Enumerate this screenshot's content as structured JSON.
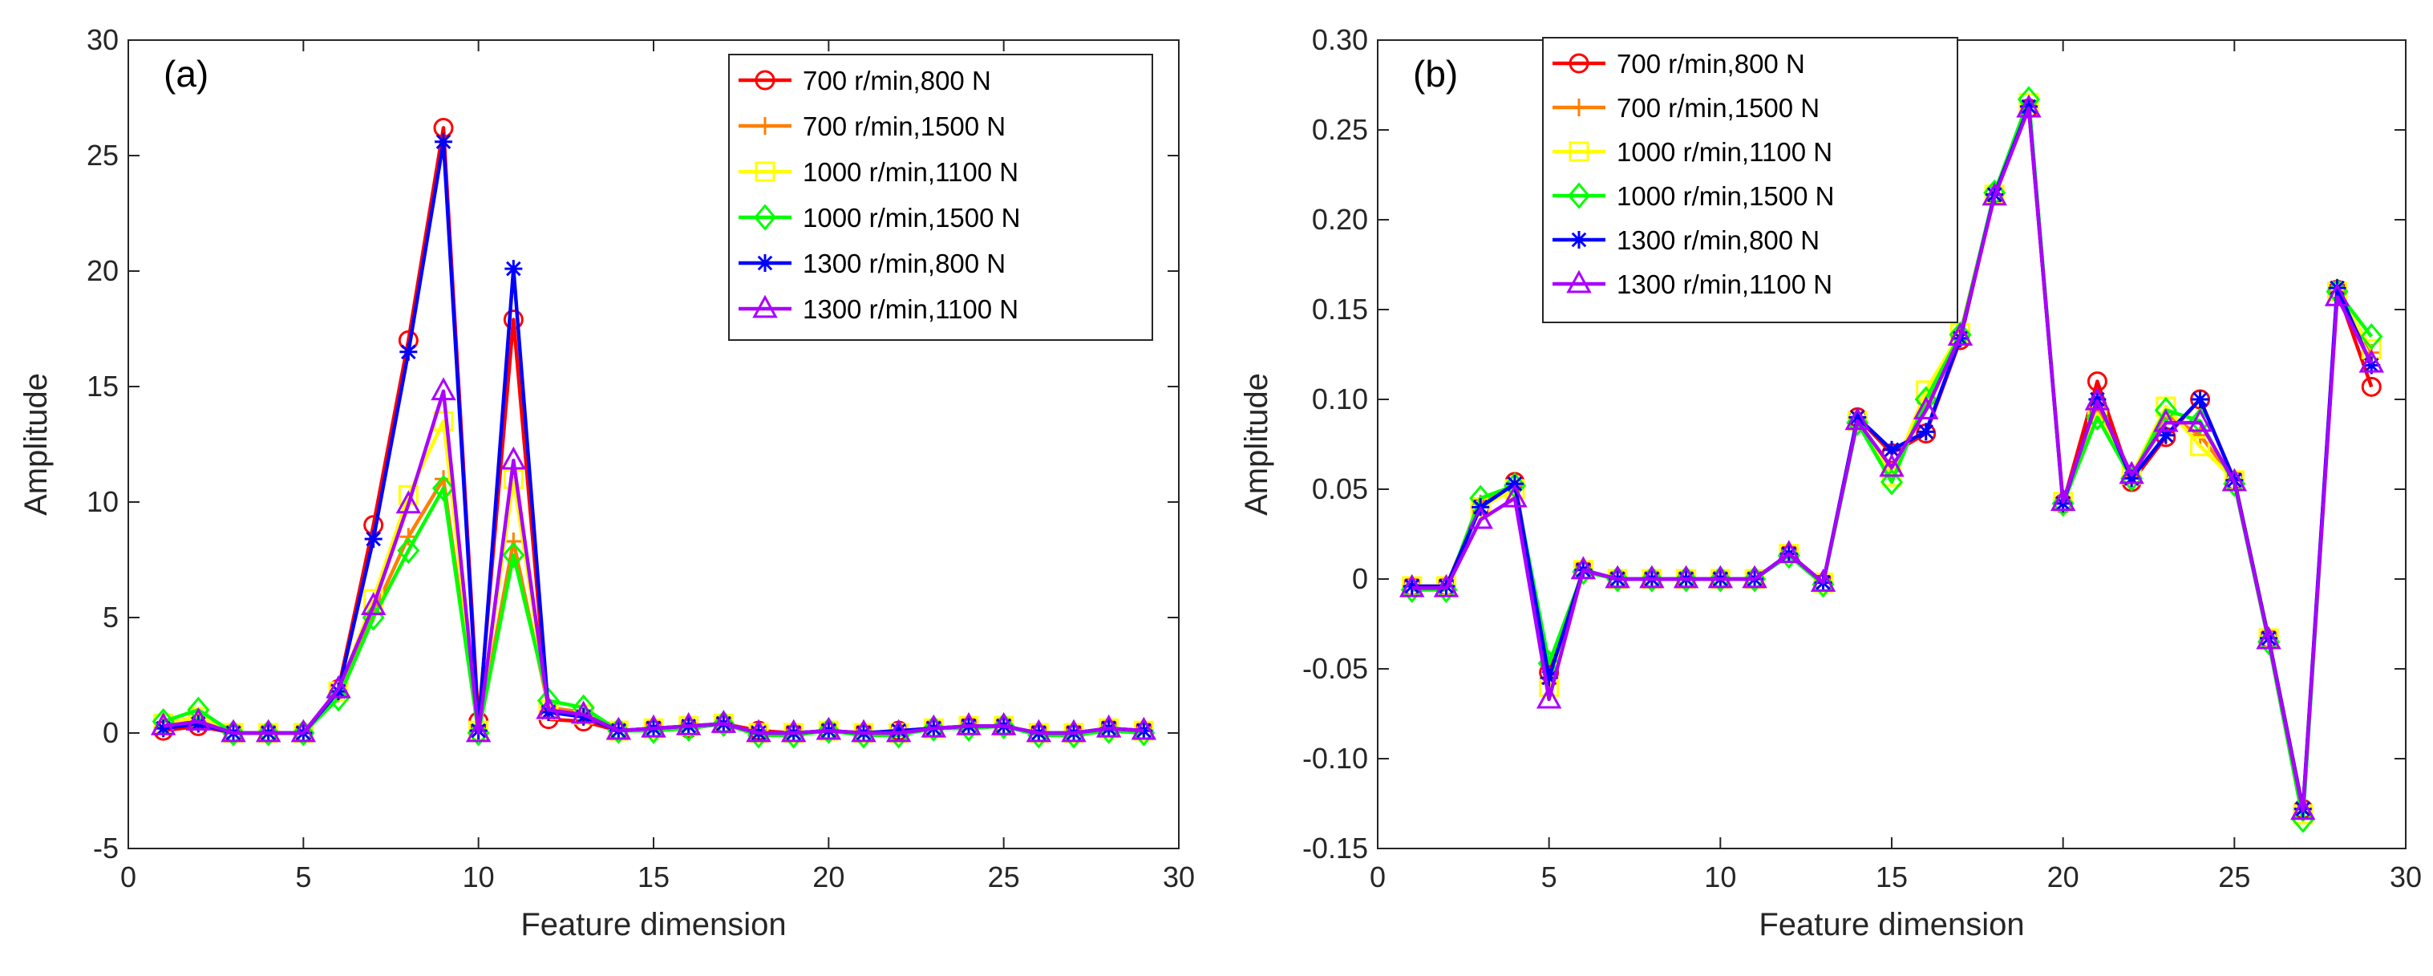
{
  "series_styles": [
    {
      "color": "#ff0000",
      "marker": "circle"
    },
    {
      "color": "#ff7f00",
      "marker": "plus"
    },
    {
      "color": "#ffff00",
      "marker": "square"
    },
    {
      "color": "#00ff00",
      "marker": "diamond"
    },
    {
      "color": "#0000ff",
      "marker": "asterisk"
    },
    {
      "color": "#aa00ff",
      "marker": "triangle"
    }
  ],
  "chart_data": [
    {
      "type": "line",
      "panel_label": "(a)",
      "xlabel": "Feature dimension",
      "ylabel": "Amplitude",
      "xlim": [
        0,
        30
      ],
      "ylim": [
        -5,
        30
      ],
      "x_ticks": [
        0,
        5,
        10,
        15,
        20,
        25,
        30
      ],
      "y_ticks": [
        -5,
        0,
        5,
        10,
        15,
        20,
        25,
        30
      ],
      "x_tick_labels": [
        "0",
        "5",
        "10",
        "15",
        "20",
        "25",
        "30"
      ],
      "y_tick_labels": [
        "-5",
        "0",
        "5",
        "10",
        "15",
        "20",
        "25",
        "30"
      ],
      "grid": false,
      "legend_position": "top-right",
      "x": [
        1,
        2,
        3,
        4,
        5,
        6,
        7,
        8,
        9,
        10,
        11,
        12,
        13,
        14,
        15,
        16,
        17,
        18,
        19,
        20,
        21,
        22,
        23,
        24,
        25,
        26,
        27,
        28,
        29
      ],
      "series": [
        {
          "name": "700 r/min,800 N",
          "values": [
            0.1,
            0.3,
            0.0,
            0.0,
            0.0,
            1.9,
            9.0,
            17.0,
            26.2,
            0.5,
            17.9,
            0.6,
            0.5,
            0.1,
            0.2,
            0.2,
            0.4,
            0.1,
            0.0,
            0.1,
            0.0,
            0.1,
            0.2,
            0.3,
            0.3,
            0.0,
            0.0,
            0.2,
            0.1
          ]
        },
        {
          "name": "700 r/min,1500 N",
          "values": [
            0.3,
            0.6,
            0.0,
            0.0,
            0.0,
            1.7,
            5.2,
            8.5,
            11.0,
            0.1,
            8.3,
            1.1,
            0.9,
            0.1,
            0.2,
            0.3,
            0.4,
            0.0,
            0.0,
            0.1,
            0.0,
            0.0,
            0.2,
            0.3,
            0.3,
            0.0,
            0.0,
            0.2,
            0.1
          ]
        },
        {
          "name": "1000 r/min,1100 N",
          "values": [
            0.4,
            0.7,
            0.0,
            0.0,
            0.0,
            1.8,
            5.8,
            10.3,
            13.5,
            0.1,
            11.0,
            1.0,
            0.8,
            0.1,
            0.2,
            0.3,
            0.4,
            0.0,
            0.0,
            0.1,
            0.0,
            0.0,
            0.2,
            0.3,
            0.3,
            0.0,
            0.0,
            0.2,
            0.1
          ]
        },
        {
          "name": "1000 r/min,1500 N",
          "values": [
            0.5,
            1.0,
            0.0,
            0.0,
            0.0,
            1.5,
            5.0,
            7.9,
            10.6,
            0.0,
            7.7,
            1.4,
            1.1,
            0.1,
            0.1,
            0.2,
            0.4,
            -0.1,
            -0.1,
            0.1,
            -0.1,
            -0.1,
            0.2,
            0.2,
            0.3,
            -0.1,
            -0.1,
            0.1,
            0.0
          ]
        },
        {
          "name": "1300 r/min,800 N",
          "values": [
            0.2,
            0.4,
            0.0,
            0.0,
            0.0,
            1.8,
            8.4,
            16.5,
            25.6,
            0.1,
            20.1,
            0.9,
            0.7,
            0.1,
            0.2,
            0.3,
            0.4,
            0.0,
            0.0,
            0.1,
            0.0,
            0.1,
            0.2,
            0.3,
            0.3,
            0.0,
            0.0,
            0.2,
            0.1
          ]
        },
        {
          "name": "1300 r/min,1100 N",
          "values": [
            0.3,
            0.5,
            0.0,
            0.0,
            0.0,
            1.9,
            5.5,
            9.9,
            14.8,
            0.0,
            11.8,
            1.0,
            0.8,
            0.1,
            0.2,
            0.3,
            0.4,
            0.0,
            0.0,
            0.1,
            0.0,
            0.0,
            0.2,
            0.3,
            0.3,
            0.0,
            0.0,
            0.2,
            0.1
          ]
        }
      ]
    },
    {
      "type": "line",
      "panel_label": "(b)",
      "xlabel": "Feature dimension",
      "ylabel": "Amplitude",
      "xlim": [
        0,
        30
      ],
      "ylim": [
        -0.15,
        0.3
      ],
      "x_ticks": [
        0,
        5,
        10,
        15,
        20,
        25,
        30
      ],
      "y_ticks": [
        -0.15,
        -0.1,
        -0.05,
        0,
        0.05,
        0.1,
        0.15,
        0.2,
        0.25,
        0.3
      ],
      "x_tick_labels": [
        "0",
        "5",
        "10",
        "15",
        "20",
        "25",
        "30"
      ],
      "y_tick_labels": [
        "-0.15",
        "-0.10",
        "-0.05",
        "0",
        "0.05",
        "0.10",
        "0.15",
        "0.20",
        "0.25",
        "0.30"
      ],
      "grid": false,
      "legend_position": "top-left",
      "x": [
        1,
        2,
        3,
        4,
        5,
        6,
        7,
        8,
        9,
        10,
        11,
        12,
        13,
        14,
        15,
        16,
        17,
        18,
        19,
        20,
        21,
        22,
        23,
        24,
        25,
        26,
        27,
        28,
        29
      ],
      "series": [
        {
          "name": "700 r/min,800 N",
          "values": [
            -0.004,
            -0.004,
            0.04,
            0.054,
            -0.052,
            0.005,
            0.0,
            0.0,
            0.0,
            0.0,
            0.0,
            0.014,
            -0.002,
            0.09,
            0.07,
            0.081,
            0.133,
            0.214,
            0.262,
            0.042,
            0.11,
            0.054,
            0.079,
            0.1,
            0.055,
            -0.033,
            -0.128,
            0.161,
            0.107
          ]
        },
        {
          "name": "700 r/min,1500 N",
          "values": [
            -0.004,
            -0.004,
            0.042,
            0.052,
            -0.058,
            0.005,
            0.0,
            0.0,
            0.0,
            0.0,
            0.0,
            0.014,
            -0.002,
            0.088,
            0.06,
            0.098,
            0.136,
            0.214,
            0.264,
            0.043,
            0.095,
            0.057,
            0.092,
            0.08,
            0.055,
            -0.033,
            -0.13,
            0.16,
            0.126
          ]
        },
        {
          "name": "1000 r/min,1100 N",
          "values": [
            -0.004,
            -0.004,
            0.04,
            0.05,
            -0.06,
            0.005,
            0.0,
            0.0,
            0.0,
            0.0,
            0.0,
            0.014,
            -0.002,
            0.088,
            0.057,
            0.105,
            0.137,
            0.214,
            0.265,
            0.043,
            0.092,
            0.058,
            0.096,
            0.074,
            0.055,
            -0.033,
            -0.131,
            0.16,
            0.128
          ]
        },
        {
          "name": "1000 r/min,1500 N",
          "values": [
            -0.006,
            -0.006,
            0.045,
            0.052,
            -0.047,
            0.004,
            0.0,
            0.0,
            0.0,
            0.0,
            0.0,
            0.013,
            -0.003,
            0.087,
            0.054,
            0.1,
            0.136,
            0.215,
            0.267,
            0.042,
            0.09,
            0.056,
            0.094,
            0.088,
            0.053,
            -0.035,
            -0.134,
            0.16,
            0.135
          ]
        },
        {
          "name": "1300 r/min,800 N",
          "values": [
            -0.004,
            -0.004,
            0.04,
            0.053,
            -0.055,
            0.005,
            0.0,
            0.0,
            0.0,
            0.0,
            0.0,
            0.014,
            -0.002,
            0.09,
            0.072,
            0.082,
            0.134,
            0.214,
            0.263,
            0.042,
            0.1,
            0.056,
            0.08,
            0.1,
            0.055,
            -0.033,
            -0.128,
            0.162,
            0.119
          ]
        },
        {
          "name": "1300 r/min,1100 N",
          "values": [
            -0.005,
            -0.005,
            0.033,
            0.045,
            -0.067,
            0.005,
            0.0,
            0.0,
            0.0,
            0.0,
            0.0,
            0.014,
            -0.002,
            0.088,
            0.062,
            0.094,
            0.135,
            0.213,
            0.262,
            0.043,
            0.099,
            0.058,
            0.087,
            0.087,
            0.054,
            -0.034,
            -0.129,
            0.157,
            0.12
          ]
        }
      ]
    }
  ]
}
